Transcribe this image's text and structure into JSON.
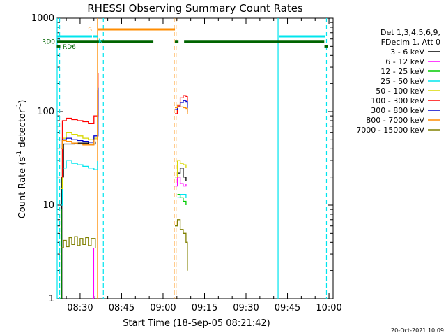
{
  "chart_data": {
    "type": "line",
    "title": "RHESSI Observing Summary Count Rates",
    "xlabel": "Start Time (18-Sep-05 08:21:42)",
    "ylabel": "Count Rate (s⁻¹ detector⁻¹)",
    "ylabel_parts": {
      "main": "Count Rate (s",
      "sup1": "-1",
      "mid": " detector",
      "sup2": "-1",
      "end": ")"
    },
    "timestamp": "20-Oct-2021 10:09",
    "y_scale": "log",
    "ylim": [
      1,
      1000
    ],
    "xlim": [
      "08:21:42",
      "10:01:30"
    ],
    "grid": false,
    "legend_position": "right",
    "legend_header": [
      "Det 1,3,4,5,6,9,",
      "FDecim 1, Att 0"
    ],
    "x_ticks": [
      "08:30",
      "08:45",
      "09:00",
      "09:15",
      "09:30",
      "09:45",
      "10:00"
    ],
    "x_tick_minutes": [
      30,
      45,
      60,
      75,
      90,
      105,
      120
    ],
    "y_ticks": [
      {
        "value": 1,
        "label": "1"
      },
      {
        "value": 10,
        "label": "10"
      },
      {
        "value": 100,
        "label": "100"
      },
      {
        "value": 1000,
        "label": "1000"
      }
    ],
    "state_bars": {
      "labels": {
        "rd0": "RD0",
        "rd6": "RD6",
        "s": "S",
        "n": "N"
      },
      "colors": {
        "rd": "#006400",
        "s": "#ff8c00",
        "n": "#00e5ee"
      },
      "rd0": [
        [
          21.7,
          56.5
        ],
        [
          64.3,
          65.6
        ],
        [
          67.6,
          118.3
        ]
      ],
      "rd6_marks": [
        22.2,
        119.0
      ],
      "s": [
        [
          36.3,
          64.3
        ]
      ],
      "n": [
        [
          21.7,
          34.3
        ],
        [
          34.8,
          36.3
        ],
        [
          102.1,
          118.6
        ]
      ]
    },
    "segment_markers": [
      {
        "t": 21.7,
        "color": "#00e5ee",
        "style": "solid"
      },
      {
        "t": 22.6,
        "color": "#00e5ee",
        "style": "dashed"
      },
      {
        "t": 36.3,
        "color": "#ff8c00",
        "style": "solid"
      },
      {
        "t": 38.4,
        "color": "#00e5ee",
        "style": "dashed"
      },
      {
        "t": 64.0,
        "color": "#ff8c00",
        "style": "dashed"
      },
      {
        "t": 64.7,
        "color": "#ff8c00",
        "style": "dashed"
      },
      {
        "t": 101.6,
        "color": "#00e5ee",
        "style": "solid"
      },
      {
        "t": 119.1,
        "color": "#00e5ee",
        "style": "dashed"
      }
    ],
    "series": [
      {
        "name": "3 - 6 keV",
        "color": "#000000",
        "segments": [
          [
            [
              22.8,
              1.0
            ],
            [
              23.4,
              20
            ],
            [
              24.0,
              45
            ],
            [
              28.0,
              46
            ],
            [
              33.0,
              45
            ],
            [
              35.5,
              48
            ]
          ],
          [
            [
              65.2,
              22
            ],
            [
              66.2,
              25
            ],
            [
              67.3,
              20
            ],
            [
              68.3,
              18
            ]
          ]
        ]
      },
      {
        "name": "6 - 12 keV",
        "color": "#ff00ff",
        "segments": [
          [
            [
              34.5,
              1.0
            ],
            [
              34.9,
              3.5
            ]
          ],
          [
            [
              64.2,
              16
            ],
            [
              65.2,
              20
            ],
            [
              66.2,
              17
            ],
            [
              67.3,
              16
            ],
            [
              68.3,
              17
            ]
          ]
        ]
      },
      {
        "name": "12 - 25 keV",
        "color": "#00cc00",
        "segments": [
          [
            [
              22.9,
              1.0
            ],
            [
              23.2,
              9
            ]
          ],
          [
            [
              65.2,
              13
            ],
            [
              66.2,
              12
            ],
            [
              67.3,
              11
            ],
            [
              68.3,
              10
            ]
          ]
        ]
      },
      {
        "name": "25 - 50 keV",
        "color": "#00e5ee",
        "segments": [
          [
            [
              23.0,
              10
            ],
            [
              23.6,
              25
            ],
            [
              25.0,
              30
            ],
            [
              27.0,
              28
            ],
            [
              29.0,
              27
            ],
            [
              31.0,
              26
            ],
            [
              33.0,
              25
            ],
            [
              35.0,
              24
            ],
            [
              36.3,
              30
            ]
          ],
          [
            [
              65.2,
              12
            ],
            [
              66.2,
              13
            ],
            [
              67.3,
              13
            ],
            [
              68.3,
              12
            ]
          ]
        ]
      },
      {
        "name": "50 - 100 keV",
        "color": "#d8d800",
        "segments": [
          [
            [
              23.0,
              15
            ],
            [
              23.6,
              52
            ],
            [
              25.0,
              60
            ],
            [
              27.0,
              57
            ],
            [
              29.0,
              55
            ],
            [
              31.0,
              52
            ],
            [
              33.0,
              50
            ],
            [
              35.0,
              52
            ],
            [
              36.3,
              100
            ]
          ],
          [
            [
              64.3,
              20
            ],
            [
              65.2,
              30
            ],
            [
              66.2,
              28
            ],
            [
              67.3,
              27
            ],
            [
              68.3,
              25
            ]
          ]
        ]
      },
      {
        "name": "100 - 300 keV",
        "color": "#ff0000",
        "segments": [
          [
            [
              23.0,
              20
            ],
            [
              23.6,
              80
            ],
            [
              25.0,
              85
            ],
            [
              27.0,
              82
            ],
            [
              29.0,
              80
            ],
            [
              31.0,
              78
            ],
            [
              33.0,
              75
            ],
            [
              35.0,
              90
            ],
            [
              36.5,
              260
            ]
          ],
          [
            [
              64.3,
              95
            ],
            [
              65.2,
              115
            ],
            [
              66.2,
              140
            ],
            [
              67.3,
              148
            ],
            [
              68.3,
              145
            ],
            [
              68.8,
              120
            ]
          ]
        ]
      },
      {
        "name": "300 - 800 keV",
        "color": "#0000cc",
        "segments": [
          [
            [
              23.0,
              40
            ],
            [
              23.6,
              50
            ],
            [
              25.0,
              52
            ],
            [
              27.0,
              50
            ],
            [
              29.0,
              49
            ],
            [
              31.0,
              48
            ],
            [
              33.0,
              47
            ],
            [
              35.0,
              55
            ],
            [
              36.5,
              180
            ]
          ],
          [
            [
              64.3,
              105
            ],
            [
              65.2,
              112
            ],
            [
              66.2,
              125
            ],
            [
              67.3,
              132
            ],
            [
              68.3,
              128
            ],
            [
              68.8,
              100
            ]
          ]
        ]
      },
      {
        "name": "800 - 7000 keV",
        "color": "#ff8c00",
        "segments": [
          [
            [
              23.0,
              40
            ],
            [
              23.6,
              49
            ],
            [
              25.0,
              48
            ],
            [
              27.0,
              46
            ],
            [
              29.0,
              45
            ],
            [
              31.0,
              44
            ],
            [
              33.0,
              44
            ],
            [
              35.0,
              50
            ],
            [
              36.3,
              170
            ]
          ],
          [
            [
              64.3,
              110
            ],
            [
              65.2,
              118
            ],
            [
              66.2,
              112
            ],
            [
              67.3,
              110
            ],
            [
              68.3,
              108
            ],
            [
              68.8,
              95
            ]
          ]
        ]
      },
      {
        "name": "7000 - 15000 keV",
        "color": "#808000",
        "segments": [
          [
            [
              23.0,
              3.5
            ],
            [
              24.0,
              4.2
            ],
            [
              25.0,
              3.6
            ],
            [
              26.0,
              4.5
            ],
            [
              27.0,
              3.8
            ],
            [
              28.0,
              4.6
            ],
            [
              29.0,
              3.7
            ],
            [
              30.0,
              4.4
            ],
            [
              31.0,
              3.8
            ],
            [
              32.0,
              4.5
            ],
            [
              33.0,
              3.7
            ],
            [
              34.0,
              4.4
            ],
            [
              35.5,
              3.5
            ]
          ],
          [
            [
              64.3,
              6
            ],
            [
              65.2,
              7
            ],
            [
              66.2,
              5.5
            ],
            [
              67.3,
              5
            ],
            [
              68.3,
              4
            ],
            [
              68.8,
              2.0
            ]
          ]
        ]
      }
    ]
  }
}
